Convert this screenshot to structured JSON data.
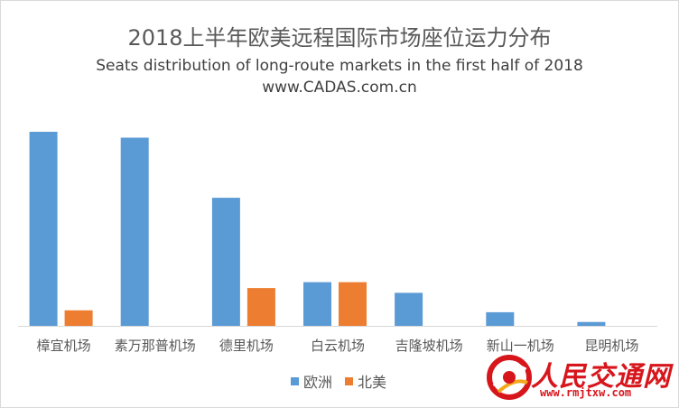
{
  "chart_data": {
    "type": "bar",
    "title": "2018上半年欧美远程国际市场座位运力分布",
    "subtitle": "Seats distribution of long-route markets in the first half of 2018",
    "subtitle2": "www.CADAS.com.cn",
    "xlabel": "",
    "ylabel": "",
    "ylim": [
      0,
      100
    ],
    "grid": false,
    "legend_position": "bottom",
    "categories": [
      "樟宜机场",
      "素万那普机场",
      "德里机场",
      "白云机场",
      "吉隆坡机场",
      "新山一机场",
      "昆明机场"
    ],
    "series": [
      {
        "name": "欧洲",
        "color": "#5b9bd5",
        "values": [
          100,
          97,
          66,
          22.5,
          17,
          7,
          2
        ]
      },
      {
        "name": "北美",
        "color": "#ed7d31",
        "values": [
          8,
          0,
          19.5,
          22.5,
          0,
          0,
          0
        ]
      }
    ]
  },
  "watermark": {
    "name": "人民交通网",
    "url": "www.rmjtxw.com",
    "logo_icon": "red-swirl-logo-icon"
  }
}
